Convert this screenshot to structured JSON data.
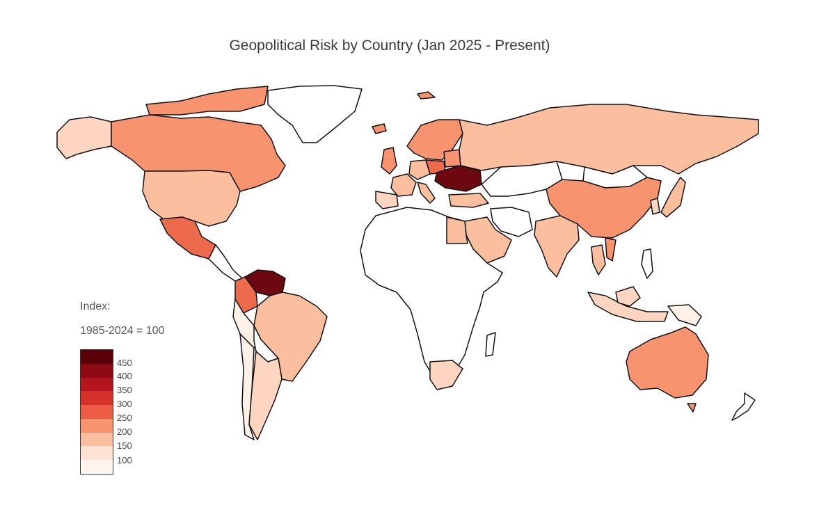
{
  "title": "Geopolitical Risk by Country (Jan 2025 - Present)",
  "legend": {
    "title_line1": "Index:",
    "title_line2": "1985-2024 = 100",
    "ticks": [
      "450",
      "400",
      "350",
      "300",
      "250",
      "200",
      "150",
      "100"
    ],
    "scale_colors": [
      "#5a0008",
      "#8b0a14",
      "#b3141e",
      "#d6302a",
      "#ec5b43",
      "#f7936e",
      "#fbbfa0",
      "#fde3d3",
      "#fff5ef"
    ]
  },
  "colors": {
    "no_data": "#ffffff",
    "outline": "#111111"
  },
  "countries": [
    {
      "name": "Alaska",
      "level": "low"
    },
    {
      "name": "Canada",
      "level": "medium"
    },
    {
      "name": "Greenland",
      "level": "none"
    },
    {
      "name": "United States",
      "level": "low-medium"
    },
    {
      "name": "Mexico",
      "level": "medium-high"
    },
    {
      "name": "Venezuela",
      "level": "very-high"
    },
    {
      "name": "Colombia",
      "level": "medium-high"
    },
    {
      "name": "Brazil",
      "level": "low-medium"
    },
    {
      "name": "Peru",
      "level": "very-low"
    },
    {
      "name": "Chile",
      "level": "very-low"
    },
    {
      "name": "Argentina",
      "level": "low"
    },
    {
      "name": "Russia",
      "level": "low-medium"
    },
    {
      "name": "Ukraine",
      "level": "very-high"
    },
    {
      "name": "China",
      "level": "medium"
    },
    {
      "name": "India",
      "level": "low-medium"
    },
    {
      "name": "Saudi Arabia",
      "level": "low-medium"
    },
    {
      "name": "Egypt",
      "level": "low-medium"
    },
    {
      "name": "Turkey",
      "level": "low-medium"
    },
    {
      "name": "South Africa",
      "level": "low"
    },
    {
      "name": "Australia",
      "level": "medium"
    },
    {
      "name": "Japan",
      "level": "low-medium"
    },
    {
      "name": "Korea",
      "level": "low"
    },
    {
      "name": "Indonesia",
      "level": "low"
    },
    {
      "name": "Philippines",
      "level": "none"
    },
    {
      "name": "Thailand",
      "level": "low-medium"
    },
    {
      "name": "Vietnam",
      "level": "medium"
    },
    {
      "name": "Scandinavia",
      "level": "medium"
    },
    {
      "name": "United Kingdom",
      "level": "medium"
    },
    {
      "name": "Spain",
      "level": "low"
    },
    {
      "name": "France",
      "level": "low-medium"
    },
    {
      "name": "Germany",
      "level": "low-medium"
    },
    {
      "name": "Poland",
      "level": "medium-high"
    },
    {
      "name": "Italy",
      "level": "low-medium"
    },
    {
      "name": "Belarus",
      "level": "medium"
    },
    {
      "name": "Africa",
      "level": "none"
    },
    {
      "name": "Iran",
      "level": "none"
    },
    {
      "name": "Kazakhstan",
      "level": "none"
    },
    {
      "name": "Mongolia",
      "level": "none"
    },
    {
      "name": "New Zealand",
      "level": "none"
    }
  ]
}
